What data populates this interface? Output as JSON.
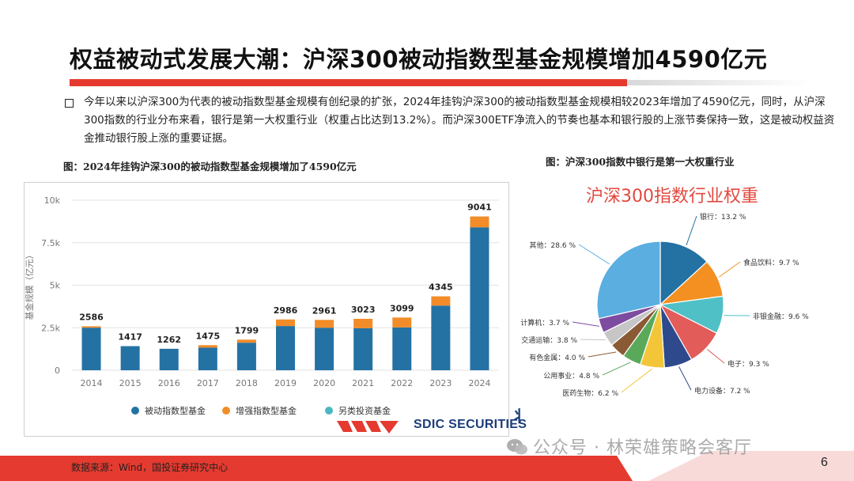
{
  "slide": {
    "title": "权益被动式发展大潮：沪深300被动指数型基金规模增加4590亿元",
    "bullet": "今年以来以沪深300为代表的被动指数型基金规模有创纪录的扩张，2024年挂钩沪深300的被动指数型基金规模相较2023年增加了4590亿元，同时，从沪深300指数的行业分布来看，银行是第一大权重行业（权重占比达到13.2%）。而沪深300ETF净流入的节奏也基本和银行股的上涨节奏保持一致，这是被动权益资金推动银行股上涨的重要证据。",
    "source": "数据来源：Wind，国投证券研究中心",
    "watermark": "公众号 · 林荣雄策略会客厅",
    "page_number": "6",
    "logo_text": "SDIC SECURITIES",
    "colors": {
      "accent_red": "#e53a2f",
      "bar_passive": "#2472a4",
      "bar_enhanced": "#f28c28",
      "bar_alternative": "#49b8c2"
    }
  },
  "chart_data": [
    {
      "type": "bar",
      "stacked": true,
      "caption": "图：2024年挂钩沪深300的被动指数型基金规模增加了4590亿元",
      "ylabel": "基金规模（亿元）",
      "xlabel": "",
      "ylim": [
        0,
        10000
      ],
      "yticks": [
        "0",
        "2.5k",
        "5k",
        "7.5k",
        "10k"
      ],
      "ytick_values": [
        0,
        2500,
        5000,
        7500,
        10000
      ],
      "categories": [
        "2014",
        "2015",
        "2016",
        "2017",
        "2018",
        "2019",
        "2020",
        "2021",
        "2022",
        "2023",
        "2024"
      ],
      "series": [
        {
          "name": "被动指数型基金",
          "color": "#2472a4",
          "values": [
            2500,
            1417,
            1262,
            1330,
            1620,
            2600,
            2500,
            2470,
            2520,
            3800,
            8400
          ]
        },
        {
          "name": "增强指数型基金",
          "color": "#f28c28",
          "values": [
            86,
            0,
            0,
            145,
            179,
            386,
            461,
            553,
            579,
            545,
            641
          ]
        },
        {
          "name": "另类投资基金",
          "color": "#49b8c2",
          "values": [
            0,
            0,
            0,
            0,
            0,
            0,
            0,
            0,
            0,
            0,
            0
          ]
        }
      ],
      "totals": [
        2586,
        1417,
        1262,
        1475,
        1799,
        2986,
        2961,
        3023,
        3099,
        4345,
        9041
      ],
      "grid": true,
      "legend": "bottom"
    },
    {
      "type": "pie",
      "caption": "图：沪深300指数中银行是第一大权重行业",
      "title": "沪深300指数行业权重",
      "slices": [
        {
          "label": "银行",
          "value": 13.2,
          "text": "13.2 %",
          "color": "#2471a3"
        },
        {
          "label": "食品饮料",
          "value": 9.7,
          "text": "9.7 %",
          "color": "#f39021"
        },
        {
          "label": "非银金融",
          "value": 9.6,
          "text": "9.6 %",
          "color": "#4fc0c6"
        },
        {
          "label": "电子",
          "value": 9.3,
          "text": "9.3 %",
          "color": "#e25c5a"
        },
        {
          "label": "电力设备",
          "value": 7.2,
          "text": "7.2 %",
          "color": "#2e4a8c"
        },
        {
          "label": "医药生物",
          "value": 6.2,
          "text": "6.2 %",
          "color": "#f3c63a"
        },
        {
          "label": "公用事业",
          "value": 4.8,
          "text": "4.8 %",
          "color": "#5aa95a"
        },
        {
          "label": "有色金属",
          "value": 4.0,
          "text": "4.0 %",
          "color": "#8a5a35"
        },
        {
          "label": "交通运输",
          "value": 3.8,
          "text": "3.8 %",
          "color": "#c6c6c6"
        },
        {
          "label": "计算机",
          "value": 3.7,
          "text": "3.7 %",
          "color": "#7d4ba0"
        },
        {
          "label": "其他",
          "value": 28.6,
          "text": "28.6 %",
          "color": "#5aaee0"
        }
      ]
    }
  ]
}
